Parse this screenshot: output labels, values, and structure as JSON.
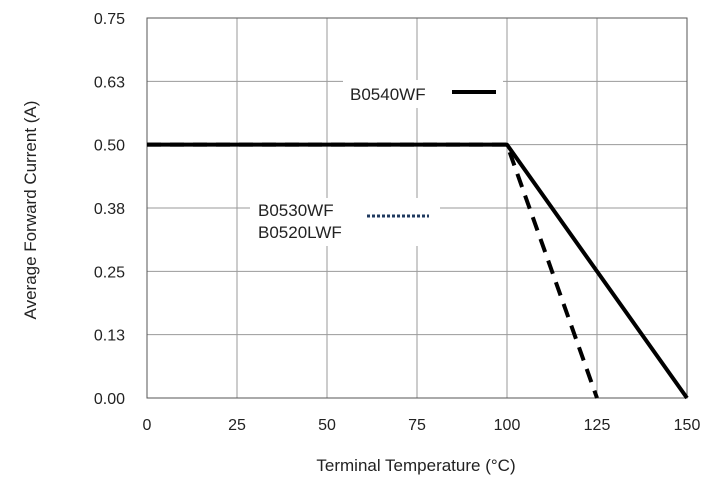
{
  "chart_data": {
    "type": "line",
    "xlabel": "Terminal Temperature (°C)",
    "ylabel": "Average Forward Current (A)",
    "xlim": [
      0,
      150
    ],
    "ylim": [
      0,
      0.75
    ],
    "x_ticks": [
      "0",
      "25",
      "50",
      "75",
      "100",
      "125",
      "150"
    ],
    "y_ticks": [
      "0.00",
      "0.13",
      "0.25",
      "0.38",
      "0.50",
      "0.63",
      "0.75"
    ],
    "grid": true,
    "series": [
      {
        "name": "B0540WF",
        "style": "solid",
        "color": "#000000",
        "x": [
          0,
          100,
          150
        ],
        "y": [
          0.5,
          0.5,
          0.0
        ]
      },
      {
        "name": "B0530WF / B0520LWF",
        "style": "dashed",
        "color": "#000000",
        "x": [
          0,
          100,
          125
        ],
        "y": [
          0.5,
          0.5,
          0.0
        ]
      }
    ],
    "legend": [
      {
        "lines": [
          "B0540WF"
        ],
        "swatch": "solid",
        "swatch_color": "#000000"
      },
      {
        "lines": [
          "B0530WF",
          "B0520LWF"
        ],
        "swatch": "dotted",
        "swatch_color": "#1f3a5f"
      }
    ]
  }
}
